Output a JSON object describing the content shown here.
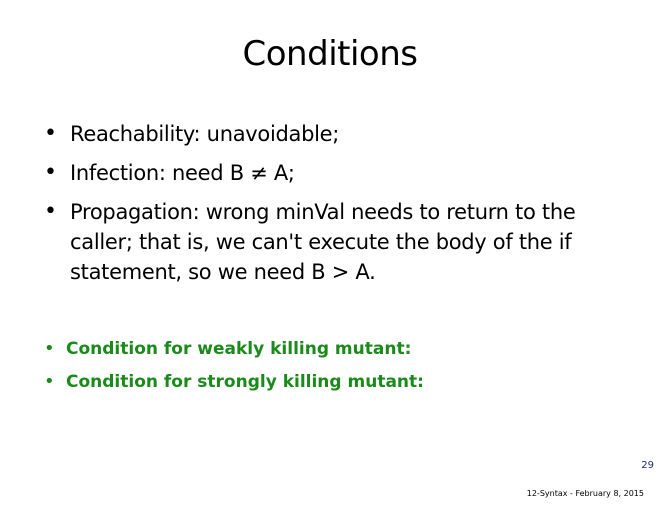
{
  "slide": {
    "title": "Conditions",
    "bullets": [
      "Reachability: unavoidable;",
      "Infection: need B ≠ A;",
      "Propagation: wrong minVal needs to return to the caller; that is, we can't execute the body of the if statement, so we need B > A."
    ],
    "green_bullets": [
      "Condition for weakly killing mutant:",
      "Condition for strongly killing mutant:"
    ],
    "bullet_glyph": "•",
    "page_number": "29",
    "footer": "12-Syntax - February 8, 2015",
    "colors": {
      "text": "#000000",
      "green": "#1a8a1a",
      "page_number": "#1f2c7a"
    }
  }
}
